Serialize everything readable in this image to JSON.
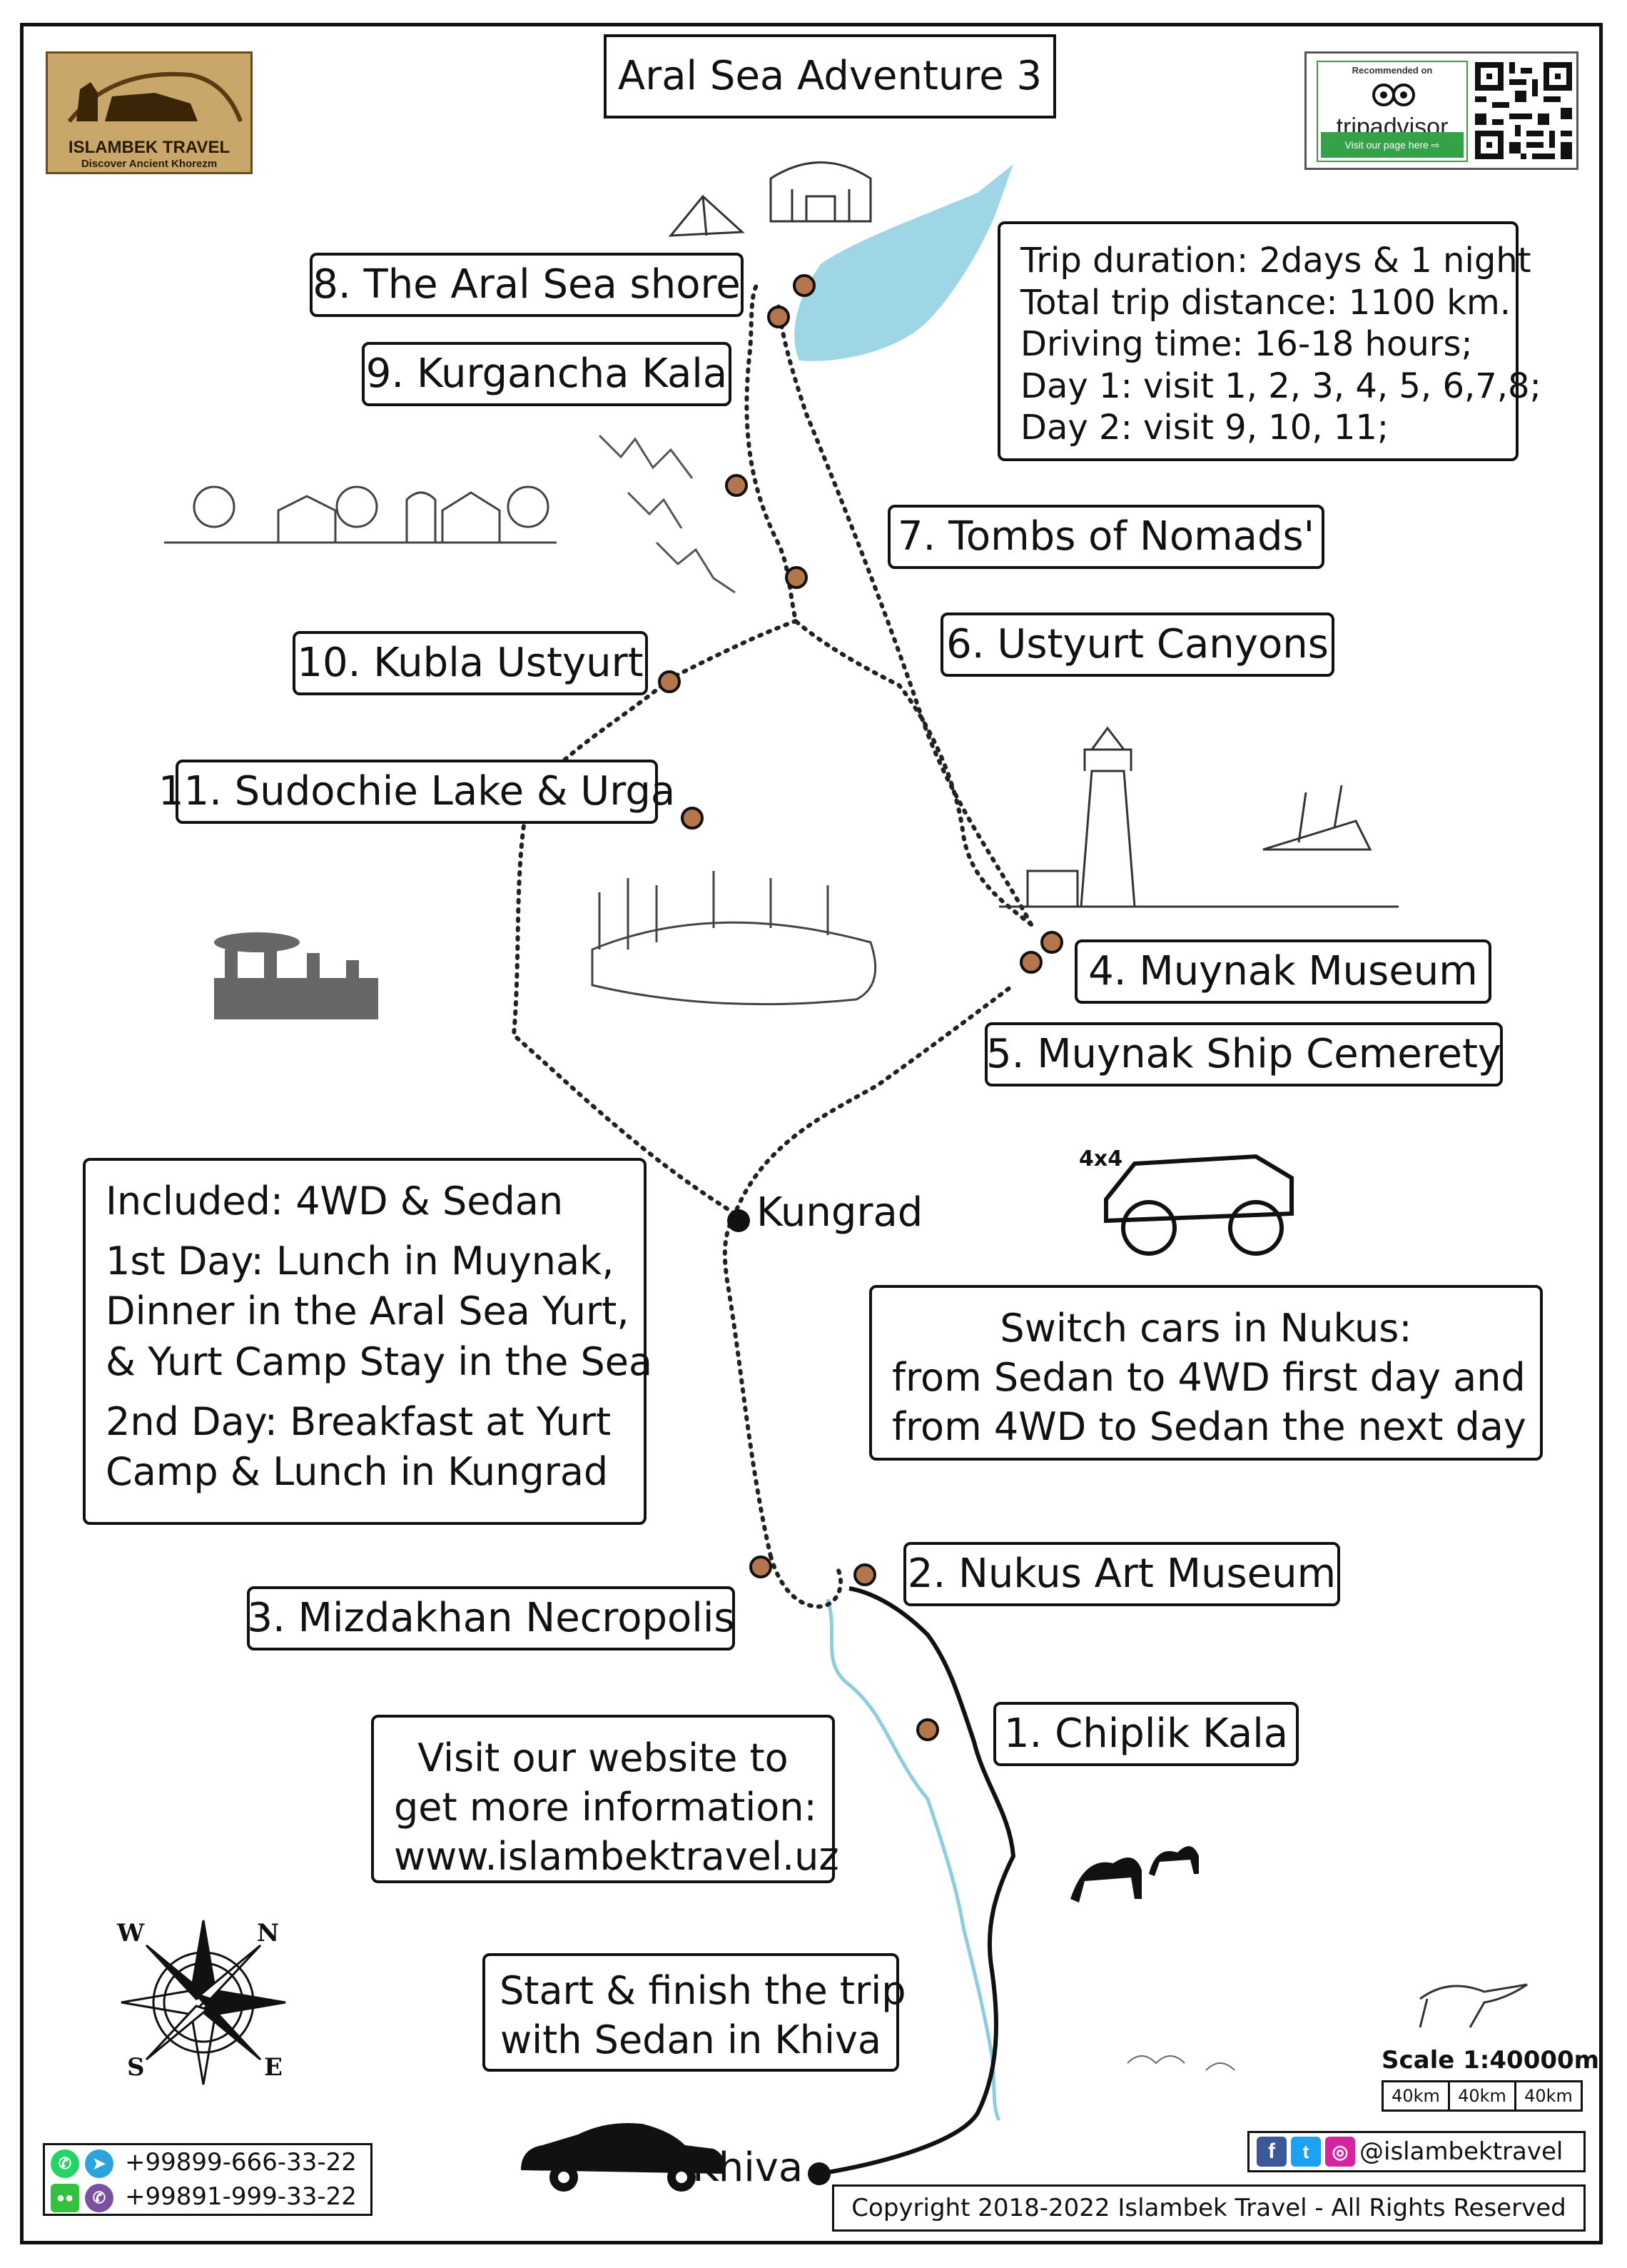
{
  "title": "Aral Sea Adventure 3",
  "logo": {
    "name": "ISLAMBEK TRAVEL",
    "tagline": "Discover Ancient Khorezm"
  },
  "tripadvisor": {
    "recommended": "Recommended on",
    "brand": "tripadvisor",
    "visit": "Visit our page here"
  },
  "trip_info": {
    "lines": [
      "Trip duration: 2days & 1 night",
      "Total trip distance: 1100 km.",
      "Driving time: 16-18 hours;",
      "Day 1: visit 1, 2, 3, 4, 5, 6,7,8;",
      "Day 2: visit 9, 10, 11;"
    ]
  },
  "stops": {
    "s1": "1. Chiplik Kala",
    "s2": "2. Nukus Art Museum",
    "s3": "3. Mizdakhan Necropolis",
    "s4": "4. Muynak Museum",
    "s5": "5. Muynak Ship Cemerety",
    "s6": "6. Ustyurt Canyons",
    "s7": "7. Tombs of Nomads'",
    "s8": "8. The Aral Sea shore",
    "s9": "9. Kurgancha Kala",
    "s10": "10. Kubla Ustyurt",
    "s11": "11. Sudochie Lake & Urga"
  },
  "cities": {
    "kungrad": "Kungrad",
    "khiva": "Khiva"
  },
  "vehicle_tag": "4x4",
  "included": {
    "lines": [
      "Included: 4WD & Sedan",
      "1st Day: Lunch in Muynak,",
      "Dinner in the Aral Sea Yurt,",
      "& Yurt Camp Stay in the Sea",
      "2nd Day: Breakfast at Yurt",
      "Camp & Lunch in Kungrad"
    ]
  },
  "switch_cars": {
    "lines": [
      "Switch cars in Nukus:",
      "from Sedan to 4WD first day and",
      "from 4WD to Sedan the next day"
    ]
  },
  "website": {
    "lines": [
      "Visit our website to",
      "get more information:",
      "www.islambektravel.uz"
    ]
  },
  "start_finish": {
    "lines": [
      "Start & finish the trip",
      "with Sedan in Khiva"
    ]
  },
  "compass": {
    "w": "W",
    "n": "N",
    "s": "S",
    "e": "E"
  },
  "scale": {
    "label": "Scale 1:40000m",
    "segments": [
      "40km",
      "40km",
      "40km"
    ]
  },
  "contacts": {
    "phone1": "+99899-666-33-22",
    "phone2": "+99891-999-33-22"
  },
  "social": {
    "handle": "@islambektravel"
  },
  "copyright": "Copyright 2018-2022 Islambek Travel - All Rights Reserved",
  "colors": {
    "sea": "#9fd6e6",
    "marker": "#b5764e",
    "river": "#8ccde0"
  }
}
